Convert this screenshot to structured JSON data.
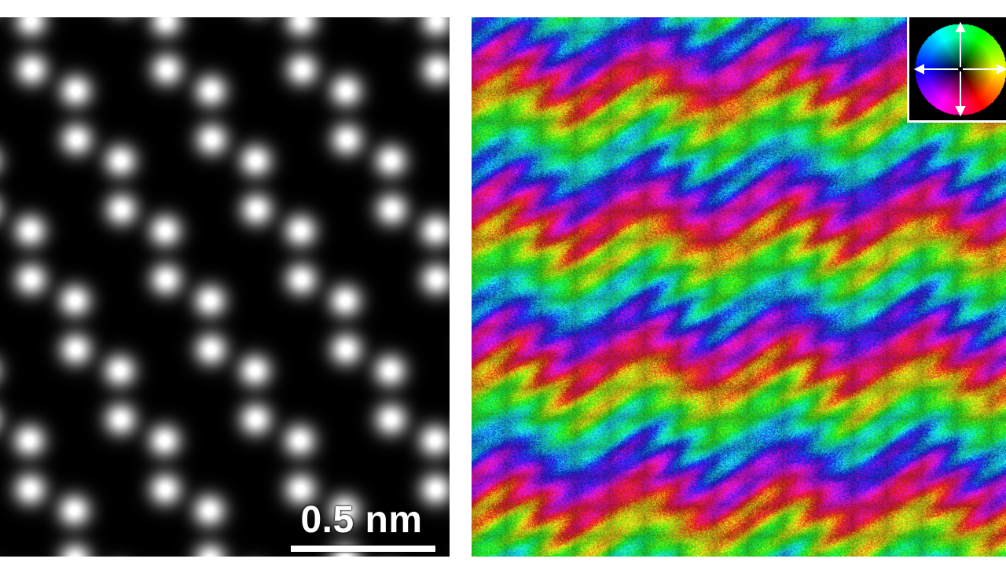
{
  "left_panel": {
    "scale_bar": {
      "label": "0.5 nm"
    },
    "lattice": {
      "icon": "atomic-lattice-image"
    }
  },
  "right_panel": {
    "map": {
      "icon": "colored-field-map"
    },
    "color_wheel": {
      "icon": "color-wheel-icon",
      "arrows": "four-way-arrows-icon"
    }
  }
}
